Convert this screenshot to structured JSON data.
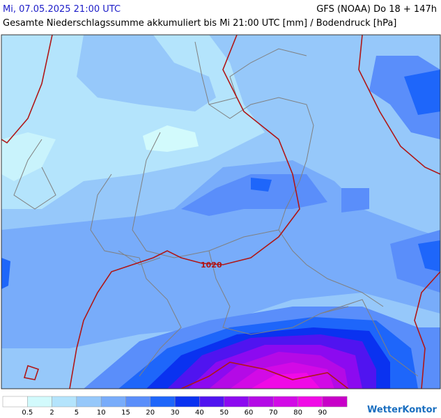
{
  "header": {
    "datetime": "Mi, 07.05.2025 21:00 UTC",
    "model": "GFS (NOAA) Do 18 + 147h",
    "title": "Gesamte Niederschlagssumme akkumuliert bis Mi 21:00 UTC [mm] / Bodendruck [hPa]"
  },
  "map": {
    "isobar_label": "1020"
  },
  "legend": {
    "colors": [
      "#ffffff",
      "#d2fafc",
      "#b4e4fc",
      "#96c8fa",
      "#78acfa",
      "#5a8efa",
      "#1e66fa",
      "#0a32f0",
      "#5014f0",
      "#8c0af0",
      "#b40ae6",
      "#d20ae6",
      "#f00ae6",
      "#c800c8"
    ],
    "labels": [
      0.5,
      2,
      5,
      10,
      15,
      20,
      30,
      40,
      50,
      60,
      70,
      80,
      90
    ]
  },
  "brand": "WetterKontor"
}
